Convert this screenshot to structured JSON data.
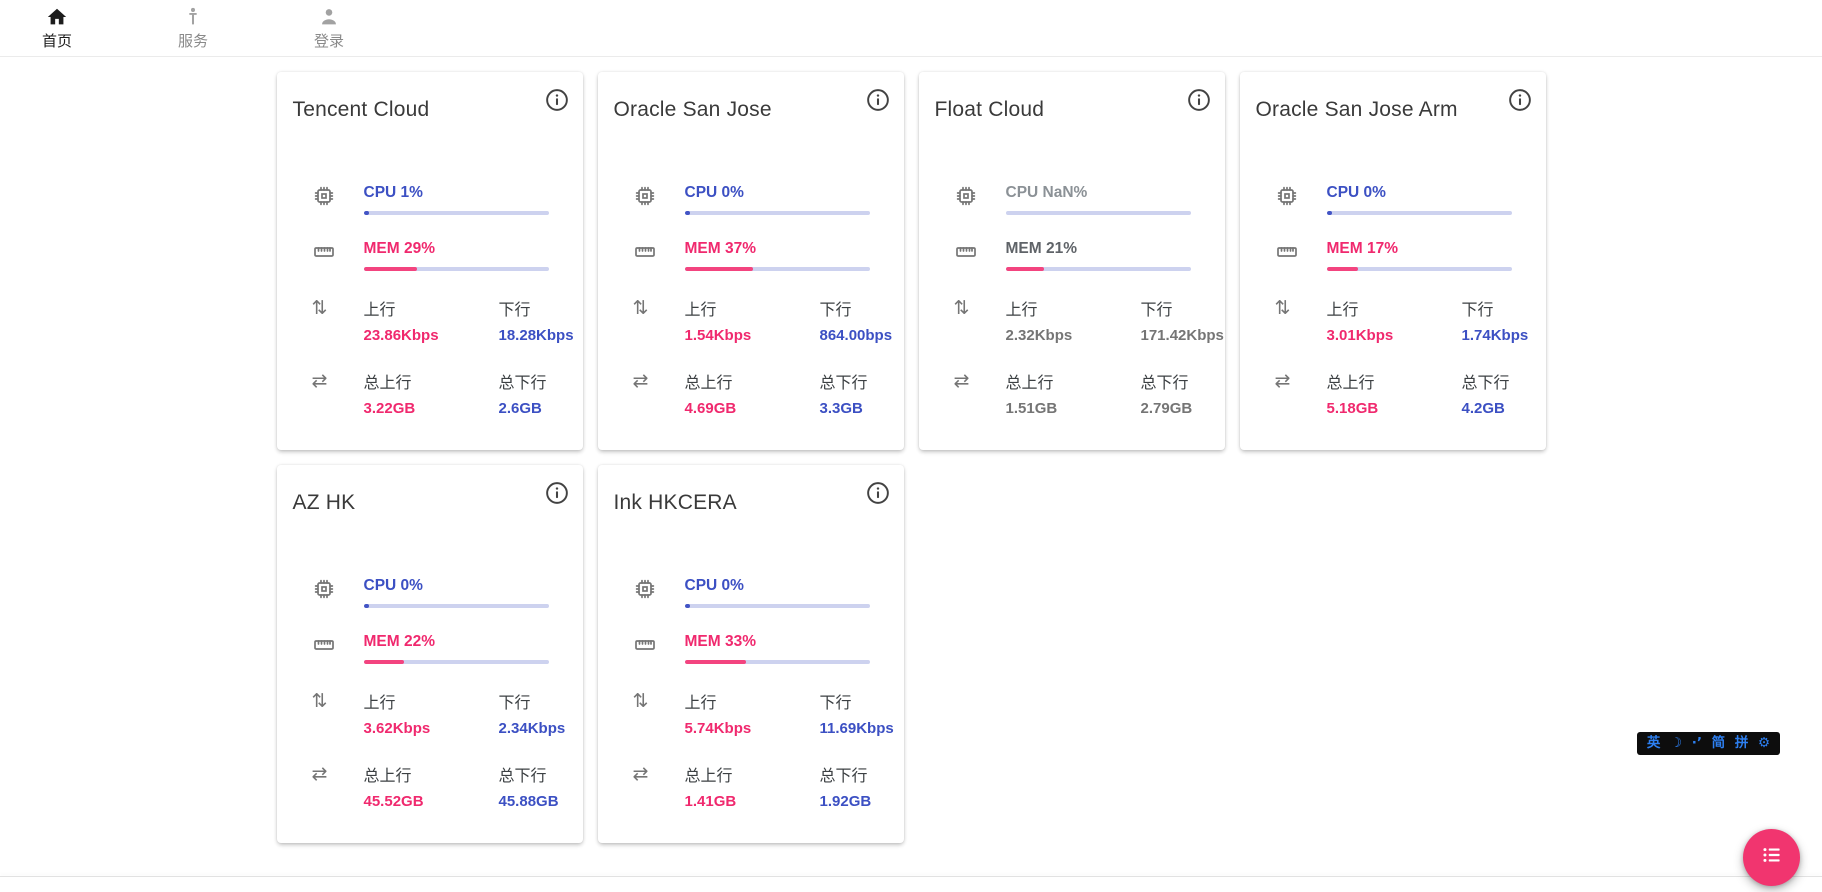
{
  "nav": {
    "items": [
      {
        "label": "首页",
        "active": true
      },
      {
        "label": "服务",
        "active": false
      }
    ],
    "login": {
      "label": "登录"
    }
  },
  "labels": {
    "up": "上行",
    "down": "下行",
    "total_up": "总上行",
    "total_down": "总下行"
  },
  "icons": {
    "updown": "⇅",
    "swap": "⇄"
  },
  "colors": {
    "accent_blue": "#3c50c3",
    "accent_pink": "#f0296e",
    "bar_track": "#cdd2ef",
    "fab_pink": "#f1356f",
    "ime_blue": "#2d7ff0"
  },
  "servers": [
    {
      "name": "Tencent Cloud",
      "cpu": "CPU 1%",
      "cpu_pct": 1,
      "mem": "MEM 29%",
      "mem_pct": 29,
      "up": "23.86Kbps",
      "down": "18.28Kbps",
      "total_up": "3.22GB",
      "total_down": "2.6GB",
      "online": true
    },
    {
      "name": "Oracle San Jose",
      "cpu": "CPU 0%",
      "cpu_pct": 0,
      "mem": "MEM 37%",
      "mem_pct": 37,
      "up": "1.54Kbps",
      "down": "864.00bps",
      "total_up": "4.69GB",
      "total_down": "3.3GB",
      "online": true
    },
    {
      "name": "Float Cloud",
      "cpu": "CPU NaN%",
      "cpu_pct": null,
      "mem": "MEM 21%",
      "mem_pct": 21,
      "up": "2.32Kbps",
      "down": "171.42Kbps",
      "total_up": "1.51GB",
      "total_down": "2.79GB",
      "online": false
    },
    {
      "name": "Oracle San Jose Arm",
      "cpu": "CPU 0%",
      "cpu_pct": 0,
      "mem": "MEM 17%",
      "mem_pct": 17,
      "up": "3.01Kbps",
      "down": "1.74Kbps",
      "total_up": "5.18GB",
      "total_down": "4.2GB",
      "online": true
    },
    {
      "name": "AZ HK",
      "cpu": "CPU 0%",
      "cpu_pct": 0,
      "mem": "MEM 22%",
      "mem_pct": 22,
      "up": "3.62Kbps",
      "down": "2.34Kbps",
      "total_up": "45.52GB",
      "total_down": "45.88GB",
      "online": true
    },
    {
      "name": "Ink HKCERA",
      "cpu": "CPU 0%",
      "cpu_pct": 0,
      "mem": "MEM 33%",
      "mem_pct": 33,
      "up": "5.74Kbps",
      "down": "11.69Kbps",
      "total_up": "1.41GB",
      "total_down": "1.92GB",
      "online": true
    }
  ],
  "ime": {
    "items": [
      "英",
      "☽",
      "·’",
      "简",
      "拼",
      "⚙"
    ]
  }
}
